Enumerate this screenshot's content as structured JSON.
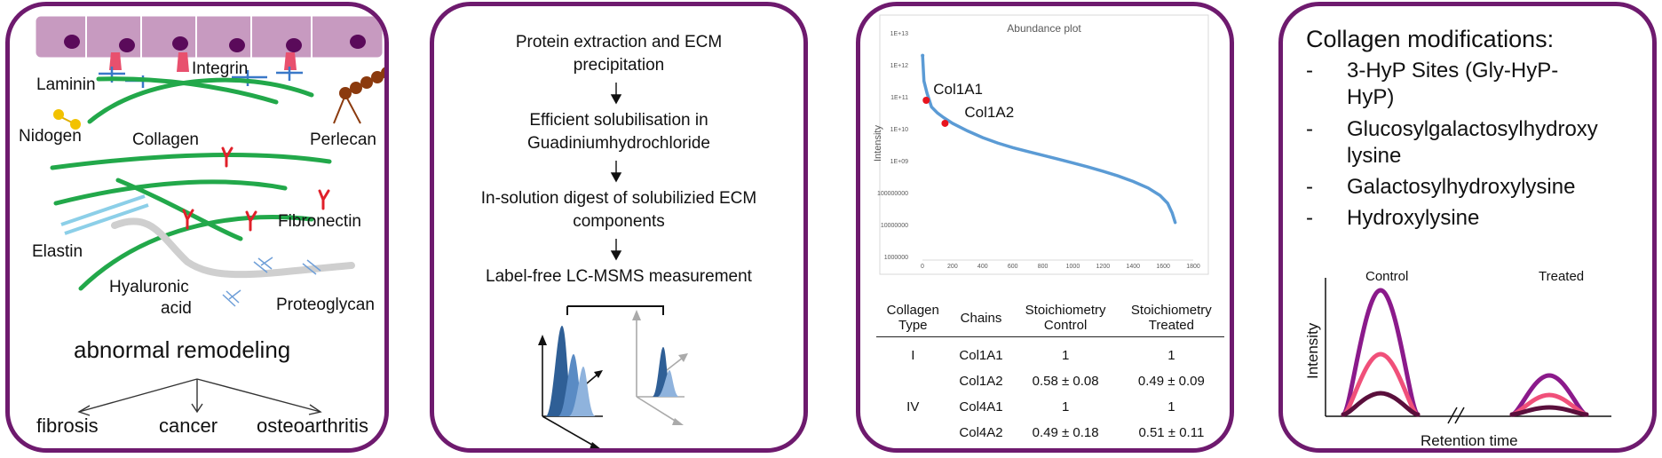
{
  "panel1": {
    "labels": {
      "laminin": "Laminin",
      "integrin": "Integrin",
      "nidogen": "Nidogen",
      "collagen": "Collagen",
      "perlecan": "Perlecan",
      "fibronectin": "Fibronectin",
      "elastin": "Elastin",
      "hyaluronic": "Hyaluronic",
      "acid": "acid",
      "proteoglycan": "Proteoglycan"
    },
    "title": "abnormal remodeling",
    "outcomes": [
      "fibrosis",
      "cancer",
      "osteoarthritis"
    ]
  },
  "panel2": {
    "steps": [
      "Protein extraction and ECM",
      "precipitation",
      "Efficient solubilisation in",
      "Guadiniumhydrochloride",
      "In-solution digest of solubilizied ECM",
      "components",
      "Label-free LC-MSMS measurement"
    ]
  },
  "panel3": {
    "chart_data": {
      "type": "scatter",
      "title": "Abundance plot",
      "ylabel": "Intensity",
      "xlabel": "",
      "yscale": "log",
      "ylim": [
        1000000,
        10000000000000
      ],
      "xlim": [
        0,
        1800
      ],
      "x_ticks": [
        "0",
        "200",
        "400",
        "600",
        "800",
        "1000",
        "1200",
        "1400",
        "1600",
        "1800"
      ],
      "y_ticks": [
        "1000000",
        "10000000",
        "100000000",
        "1E+09",
        "1E+10",
        "1E+11",
        "1E+12",
        "1E+13"
      ],
      "series": [
        {
          "color": "#5b9bd5",
          "points": [
            [
              1,
              2500000000000.0
            ],
            [
              10,
              400000000000.0
            ],
            [
              30,
              170000000000.0
            ],
            [
              60,
              62000000000.0
            ],
            [
              100,
              40000000000.0
            ],
            [
              140,
              29000000000.0
            ],
            [
              200,
              19000000000.0
            ],
            [
              300,
              11000000000.0
            ],
            [
              400,
              6800000000.0
            ],
            [
              500,
              4600000000.0
            ],
            [
              600,
              3300000000.0
            ],
            [
              700,
              2500000000.0
            ],
            [
              800,
              1900000000.0
            ],
            [
              900,
              1450000000.0
            ],
            [
              1000,
              1100000000.0
            ],
            [
              1100,
              820000000.0
            ],
            [
              1200,
              600000000.0
            ],
            [
              1300,
              430000000.0
            ],
            [
              1400,
              290000000.0
            ],
            [
              1500,
              180000000.0
            ],
            [
              1580,
              105000000.0
            ],
            [
              1630,
              60000000.0
            ],
            [
              1660,
              30000000.0
            ],
            [
              1680,
              15000000.0
            ]
          ]
        }
      ],
      "highlights": [
        {
          "label": "Col1A1",
          "x": 25,
          "y": 100000000000.0,
          "color": "#e8141e"
        },
        {
          "label": "Col1A2",
          "x": 150,
          "y": 19000000000.0,
          "color": "#e8141e"
        }
      ]
    },
    "table": {
      "headers": [
        [
          "Collagen",
          "Type"
        ],
        [
          "Chains",
          ""
        ],
        [
          "Stoichiometry",
          "Control"
        ],
        [
          "Stoichiometry",
          "Treated"
        ]
      ],
      "rows": [
        [
          "I",
          "Col1A1",
          "1",
          "1"
        ],
        [
          "",
          "Col1A2",
          "0.58 ± 0.08",
          "0.49 ± 0.09"
        ],
        [
          "IV",
          "Col4A1",
          "1",
          "1"
        ],
        [
          "",
          "Col4A2",
          "0.49 ± 0.18",
          "0.51 ± 0.11"
        ]
      ]
    }
  },
  "panel4": {
    "title": "Collagen modifications:",
    "items": [
      {
        "dash": "-",
        "lines": [
          "3-HyP Sites (Gly-HyP-",
          "HyP)"
        ]
      },
      {
        "dash": "-",
        "lines": [
          "Glucosylgalactosylhydroxy",
          "lysine"
        ]
      },
      {
        "dash": "-",
        "lines": [
          "Galactosylhydroxylysine"
        ]
      },
      {
        "dash": "-",
        "lines": [
          "Hydroxylysine"
        ]
      }
    ],
    "chart": {
      "control_label": "Control",
      "treated_label": "Treated",
      "ylabel": "Intensity",
      "xlabel": "Retention time",
      "series_colors": [
        "#8b1a8b",
        "#f0507a",
        "#5a0f3c"
      ]
    }
  }
}
